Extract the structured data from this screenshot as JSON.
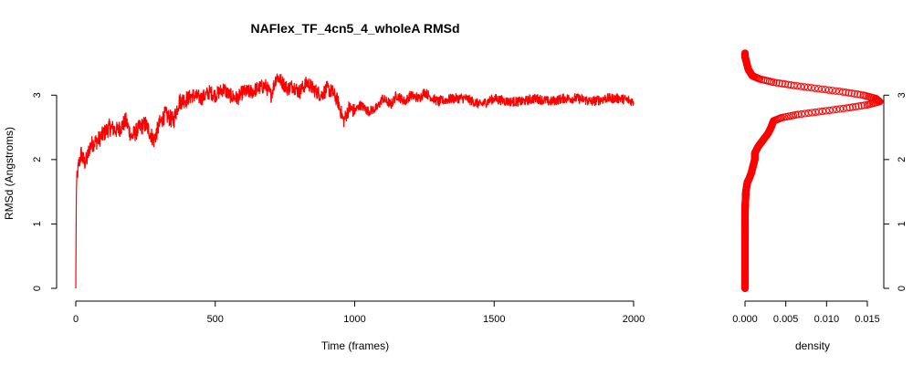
{
  "chart_data": [
    {
      "type": "line",
      "title": "NAFlex_TF_4cn5_4_wholeA RMSd",
      "xlabel": "Time (frames)",
      "ylabel": "RMSd (Angstroms)",
      "xlim": [
        0,
        2000
      ],
      "ylim": [
        0,
        3.5
      ],
      "x_ticks": [
        "0",
        "500",
        "1000",
        "1500",
        "2000"
      ],
      "y_ticks": [
        "0",
        "1",
        "2",
        "3"
      ],
      "grid": false,
      "color": "#ff0000",
      "series": [
        {
          "x": [
            0,
            2,
            5,
            10,
            20,
            30,
            40,
            50,
            60,
            80,
            100,
            120,
            150,
            180,
            200,
            230,
            250,
            280,
            300,
            320,
            350,
            370,
            400,
            420,
            450,
            480,
            500,
            530,
            550,
            580,
            600,
            630,
            650,
            680,
            700,
            720,
            740,
            760,
            780,
            800,
            830,
            850,
            880,
            900,
            920,
            940,
            950,
            960,
            970,
            980,
            1000,
            1020,
            1050,
            1080,
            1100,
            1130,
            1150,
            1180,
            1200,
            1230,
            1250,
            1280,
            1300,
            1350,
            1400,
            1450,
            1500,
            1550,
            1600,
            1650,
            1700,
            1750,
            1800,
            1850,
            1900,
            1950,
            2000
          ],
          "values": [
            0.0,
            1.5,
            1.75,
            1.9,
            2.1,
            1.95,
            2.0,
            2.2,
            2.25,
            2.3,
            2.4,
            2.5,
            2.45,
            2.6,
            2.35,
            2.5,
            2.55,
            2.3,
            2.55,
            2.7,
            2.6,
            2.9,
            2.95,
            3.0,
            2.95,
            3.05,
            3.0,
            3.1,
            3.0,
            2.95,
            3.05,
            3.05,
            3.1,
            3.15,
            3.0,
            3.3,
            3.2,
            3.1,
            3.15,
            3.05,
            3.2,
            3.1,
            3.0,
            3.1,
            3.05,
            2.9,
            2.75,
            2.6,
            2.7,
            2.8,
            2.75,
            2.85,
            2.75,
            2.8,
            2.95,
            2.85,
            3.0,
            2.9,
            3.0,
            2.95,
            3.05,
            2.95,
            2.9,
            2.95,
            2.95,
            2.85,
            2.95,
            2.9,
            2.9,
            2.95,
            2.9,
            2.95,
            2.95,
            2.9,
            2.95,
            2.95,
            2.9
          ]
        }
      ]
    },
    {
      "type": "scatter",
      "title": "",
      "xlabel": "density",
      "ylabel": "",
      "xlim": [
        0,
        0.017
      ],
      "ylim": [
        0,
        3.5
      ],
      "x_ticks": [
        "0.000",
        "0.005",
        "0.010",
        "0.015"
      ],
      "y_ticks": [
        "0",
        "1",
        "2",
        "3"
      ],
      "y_axis_side": "right",
      "grid": false,
      "color": "#ff0000",
      "series": [
        {
          "y": [
            0.0,
            0.3,
            0.6,
            0.9,
            1.2,
            1.5,
            1.65,
            1.7,
            1.8,
            1.9,
            2.0,
            2.1,
            2.2,
            2.3,
            2.4,
            2.5,
            2.6,
            2.65,
            2.7,
            2.75,
            2.8,
            2.85,
            2.9,
            2.95,
            3.0,
            3.05,
            3.1,
            3.15,
            3.2,
            3.25,
            3.3,
            3.4,
            3.5,
            3.55,
            3.6,
            3.65
          ],
          "values": [
            0.0,
            0.0,
            0.0,
            0.0,
            0.0,
            0.0001,
            0.0003,
            0.0005,
            0.0008,
            0.001,
            0.0012,
            0.0012,
            0.0016,
            0.0022,
            0.0028,
            0.0032,
            0.0035,
            0.0045,
            0.0065,
            0.0095,
            0.0125,
            0.015,
            0.0165,
            0.016,
            0.0145,
            0.012,
            0.009,
            0.006,
            0.0035,
            0.0018,
            0.0009,
            0.0004,
            0.0002,
            0.0001,
            0.0,
            0.0
          ]
        }
      ]
    }
  ]
}
